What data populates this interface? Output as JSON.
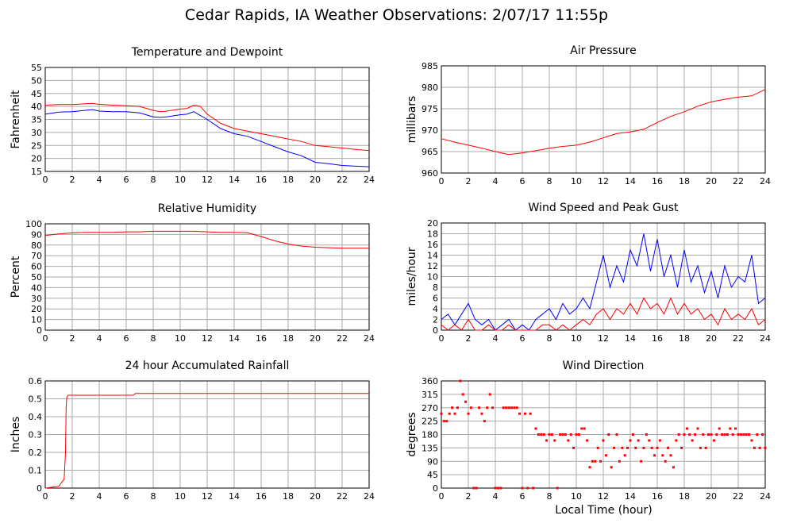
{
  "title": "Cedar Rapids, IA Weather Observations: 2/07/17 11:55p",
  "shared_xlabel": "Local Time (hour)",
  "colors": {
    "primary": "#ff0000",
    "secondary": "#0000ff",
    "grid": "#aaaaaa",
    "axis": "#000000"
  },
  "chart_data": [
    {
      "id": "temp",
      "type": "line",
      "title": "Temperature and Dewpoint",
      "xlabel": "",
      "ylabel": "Fahrenheit",
      "xlim": [
        0,
        24
      ],
      "ylim": [
        15,
        55
      ],
      "xticks": [
        0,
        2,
        4,
        6,
        8,
        10,
        12,
        14,
        16,
        18,
        20,
        22,
        24
      ],
      "yticks": [
        15,
        20,
        25,
        30,
        35,
        40,
        45,
        50,
        55
      ],
      "grid": true,
      "series": [
        {
          "color": "#ff0000",
          "x": [
            0,
            1,
            2,
            3,
            3.5,
            4,
            5,
            6,
            7,
            8,
            8.5,
            9,
            10,
            10.5,
            11,
            11.5,
            12,
            13,
            14,
            15,
            16,
            17,
            18,
            19,
            20,
            21,
            22,
            23,
            24
          ],
          "y": [
            40.5,
            40.7,
            40.7,
            41,
            41.2,
            40.8,
            40.5,
            40.3,
            40,
            38.5,
            38,
            38.2,
            39,
            39.2,
            40.5,
            40,
            37,
            33.5,
            31.5,
            30.5,
            29.5,
            28.5,
            27.5,
            26.5,
            25,
            24.5,
            24,
            23.5,
            23
          ]
        },
        {
          "color": "#0000ff",
          "x": [
            0,
            1,
            2,
            3,
            3.5,
            4,
            5,
            6,
            7,
            8,
            8.5,
            9,
            10,
            10.5,
            11,
            11.5,
            12,
            13,
            14,
            15,
            16,
            17,
            18,
            19,
            20,
            21,
            22,
            23,
            24
          ],
          "y": [
            37,
            37.8,
            38,
            38.5,
            38.8,
            38.2,
            38,
            38,
            37.5,
            36,
            35.8,
            36,
            36.8,
            37,
            38,
            36.5,
            35,
            31.5,
            29.5,
            28.5,
            26.5,
            24.5,
            22.5,
            21,
            18.5,
            18,
            17.3,
            17,
            16.8
          ]
        }
      ]
    },
    {
      "id": "pressure",
      "type": "line",
      "title": "Air Pressure",
      "xlabel": "",
      "ylabel": "millibars",
      "xlim": [
        0,
        24
      ],
      "ylim": [
        960,
        985
      ],
      "xticks": [
        0,
        2,
        4,
        6,
        8,
        10,
        12,
        14,
        16,
        18,
        20,
        22,
        24
      ],
      "yticks": [
        960,
        965,
        970,
        975,
        980,
        985
      ],
      "grid": true,
      "series": [
        {
          "color": "#ff0000",
          "x": [
            0,
            1,
            2,
            3,
            4,
            5,
            6,
            7,
            8,
            9,
            10,
            11,
            12,
            13,
            14,
            15,
            16,
            17,
            18,
            19,
            20,
            21,
            22,
            23,
            24
          ],
          "y": [
            968,
            967.2,
            966.5,
            965.8,
            965,
            964.3,
            964.7,
            965.2,
            965.8,
            966.2,
            966.5,
            967.2,
            968.2,
            969.2,
            969.6,
            970.2,
            971.8,
            973.2,
            974.3,
            975.6,
            976.6,
            977.2,
            977.7,
            978,
            979.5
          ]
        }
      ]
    },
    {
      "id": "humidity",
      "type": "line",
      "title": "Relative Humidity",
      "xlabel": "",
      "ylabel": "Percent",
      "xlim": [
        0,
        24
      ],
      "ylim": [
        0,
        100
      ],
      "xticks": [
        0,
        2,
        4,
        6,
        8,
        10,
        12,
        14,
        16,
        18,
        20,
        22,
        24
      ],
      "yticks": [
        0,
        10,
        20,
        30,
        40,
        50,
        60,
        70,
        80,
        90,
        100
      ],
      "grid": true,
      "series": [
        {
          "color": "#ff0000",
          "x": [
            0,
            1,
            2,
            3,
            4,
            5,
            6,
            7,
            8,
            9,
            10,
            11,
            12,
            13,
            14,
            15,
            16,
            17,
            18,
            19,
            20,
            21,
            22,
            23,
            24
          ],
          "y": [
            89,
            90.5,
            91.5,
            92,
            92,
            92,
            92.5,
            92.5,
            93,
            93,
            93,
            93,
            92.5,
            92,
            92,
            91.5,
            88,
            84,
            81,
            79,
            78,
            77.5,
            77,
            77,
            77
          ]
        }
      ]
    },
    {
      "id": "wind",
      "type": "line",
      "title": "Wind Speed and Peak Gust",
      "xlabel": "",
      "ylabel": "miles/hour",
      "xlim": [
        0,
        24
      ],
      "ylim": [
        0,
        20
      ],
      "xticks": [
        0,
        2,
        4,
        6,
        8,
        10,
        12,
        14,
        16,
        18,
        20,
        22,
        24
      ],
      "yticks": [
        0,
        2,
        4,
        6,
        8,
        10,
        12,
        14,
        16,
        18,
        20
      ],
      "grid": true,
      "series": [
        {
          "color": "#0000ff",
          "x": [
            0,
            0.5,
            1,
            1.5,
            2,
            2.5,
            3,
            3.5,
            4,
            4.5,
            5,
            5.5,
            6,
            6.5,
            7,
            7.5,
            8,
            8.5,
            9,
            9.5,
            10,
            10.5,
            11,
            11.5,
            12,
            12.5,
            13,
            13.5,
            14,
            14.5,
            15,
            15.5,
            16,
            16.5,
            17,
            17.5,
            18,
            18.5,
            19,
            19.5,
            20,
            20.5,
            21,
            21.5,
            22,
            22.5,
            23,
            23.5,
            24
          ],
          "y": [
            2,
            3,
            1,
            3,
            5,
            2,
            1,
            2,
            0,
            1,
            2,
            0,
            1,
            0,
            2,
            3,
            4,
            2,
            5,
            3,
            4,
            6,
            4,
            9,
            14,
            8,
            12,
            9,
            15,
            12,
            18,
            11,
            17,
            10,
            14,
            8,
            15,
            9,
            12,
            7,
            11,
            6,
            12,
            8,
            10,
            9,
            14,
            5,
            6
          ]
        },
        {
          "color": "#ff0000",
          "x": [
            0,
            0.5,
            1,
            1.5,
            2,
            2.5,
            3,
            3.5,
            4,
            4.5,
            5,
            5.5,
            6,
            6.5,
            7,
            7.5,
            8,
            8.5,
            9,
            9.5,
            10,
            10.5,
            11,
            11.5,
            12,
            12.5,
            13,
            13.5,
            14,
            14.5,
            15,
            15.5,
            16,
            16.5,
            17,
            17.5,
            18,
            18.5,
            19,
            19.5,
            20,
            20.5,
            21,
            21.5,
            22,
            22.5,
            23,
            23.5,
            24
          ],
          "y": [
            1,
            0,
            1,
            0,
            2,
            0,
            0,
            1,
            0,
            0,
            1,
            0,
            0,
            0,
            0,
            1,
            1,
            0,
            1,
            0,
            1,
            2,
            1,
            3,
            4,
            2,
            4,
            3,
            5,
            3,
            6,
            4,
            5,
            3,
            6,
            3,
            5,
            3,
            4,
            2,
            3,
            1,
            4,
            2,
            3,
            2,
            4,
            1,
            2
          ]
        }
      ]
    },
    {
      "id": "rain",
      "type": "line",
      "title": "24 hour Accumulated Rainfall",
      "xlabel": "",
      "ylabel": "Inches",
      "xlim": [
        0,
        24
      ],
      "ylim": [
        0,
        0.6
      ],
      "xticks": [
        0,
        2,
        4,
        6,
        8,
        10,
        12,
        14,
        16,
        18,
        20,
        22,
        24
      ],
      "yticks": [
        0,
        0.1,
        0.2,
        0.3,
        0.4,
        0.5,
        0.6
      ],
      "grid": true,
      "series": [
        {
          "color": "#ff0000",
          "x": [
            0,
            1.0,
            1.2,
            1.4,
            1.5,
            1.55,
            1.6,
            1.7,
            2.0,
            6.5,
            6.7,
            24
          ],
          "y": [
            0,
            0.01,
            0.03,
            0.05,
            0.2,
            0.45,
            0.51,
            0.52,
            0.52,
            0.52,
            0.53,
            0.53
          ]
        }
      ]
    },
    {
      "id": "winddir",
      "type": "scatter",
      "title": "Wind Direction",
      "xlabel": "",
      "ylabel": "degrees",
      "xlim": [
        0,
        24
      ],
      "ylim": [
        0,
        360
      ],
      "xticks": [
        0,
        2,
        4,
        6,
        8,
        10,
        12,
        14,
        16,
        18,
        20,
        22,
        24
      ],
      "yticks": [
        0,
        45,
        90,
        135,
        180,
        225,
        270,
        315,
        360
      ],
      "grid": true,
      "series": [
        {
          "color": "#ff0000",
          "x": [
            0,
            0.2,
            0.4,
            0.6,
            0.8,
            1.0,
            1.2,
            1.4,
            1.6,
            1.8,
            2.0,
            2.2,
            2.4,
            2.6,
            2.8,
            3.0,
            3.2,
            3.4,
            3.6,
            3.8,
            4.0,
            4.2,
            4.4,
            4.6,
            4.8,
            5.0,
            5.2,
            5.4,
            5.6,
            5.8,
            6.0,
            6.2,
            6.4,
            6.6,
            6.8,
            7.0,
            7.2,
            7.4,
            7.6,
            7.8,
            8.0,
            8.2,
            8.4,
            8.6,
            8.8,
            9.0,
            9.2,
            9.4,
            9.6,
            9.8,
            10.0,
            10.2,
            10.4,
            10.6,
            10.8,
            11.0,
            11.2,
            11.4,
            11.6,
            11.8,
            12.0,
            12.2,
            12.4,
            12.6,
            12.8,
            13.0,
            13.2,
            13.4,
            13.6,
            13.8,
            14.0,
            14.2,
            14.4,
            14.6,
            14.8,
            15.0,
            15.2,
            15.4,
            15.6,
            15.8,
            16.0,
            16.2,
            16.4,
            16.6,
            16.8,
            17.0,
            17.2,
            17.4,
            17.6,
            17.8,
            18.0,
            18.2,
            18.4,
            18.6,
            18.8,
            19.0,
            19.2,
            19.4,
            19.6,
            19.8,
            20.0,
            20.2,
            20.4,
            20.6,
            20.8,
            21.0,
            21.2,
            21.4,
            21.6,
            21.8,
            22.0,
            22.2,
            22.4,
            22.6,
            22.8,
            23.0,
            23.2,
            23.4,
            23.6,
            23.8,
            24.0
          ],
          "y": [
            250,
            225,
            225,
            250,
            270,
            250,
            270,
            360,
            315,
            290,
            250,
            270,
            0,
            0,
            270,
            250,
            225,
            270,
            315,
            270,
            0,
            0,
            0,
            270,
            270,
            270,
            270,
            270,
            270,
            250,
            0,
            250,
            0,
            250,
            0,
            200,
            180,
            180,
            180,
            160,
            180,
            180,
            160,
            0,
            180,
            180,
            180,
            160,
            180,
            135,
            180,
            180,
            200,
            200,
            160,
            70,
            90,
            90,
            135,
            90,
            160,
            110,
            180,
            70,
            135,
            180,
            90,
            135,
            110,
            135,
            160,
            180,
            135,
            160,
            90,
            135,
            180,
            160,
            135,
            110,
            135,
            160,
            110,
            90,
            135,
            110,
            70,
            160,
            180,
            135,
            180,
            200,
            180,
            160,
            180,
            200,
            135,
            180,
            135,
            180,
            180,
            160,
            180,
            200,
            180,
            180,
            180,
            200,
            180,
            200,
            180,
            180,
            180,
            180,
            180,
            160,
            135,
            180,
            135,
            180,
            135
          ]
        }
      ]
    }
  ]
}
